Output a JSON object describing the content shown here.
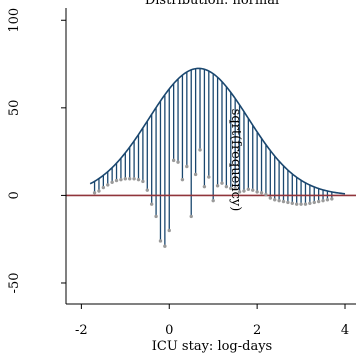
{
  "chart_data": {
    "type": "rootogram",
    "title": "Distribution: normal",
    "xlabel": "ICU stay: log-days",
    "ylabel": "sqrt(frequency)",
    "xlim": [
      -2.35,
      4.25
    ],
    "ylim": [
      -62,
      107
    ],
    "xticks": [
      "-2",
      "0",
      "2",
      "4"
    ],
    "xtick_values": [
      -2,
      0,
      2,
      4
    ],
    "yticks": [
      "-50",
      "0",
      "50",
      "100"
    ],
    "ytick_values": [
      -50,
      0,
      50,
      100
    ],
    "curve": {
      "mean": 0.67,
      "sd": 1.13,
      "peak": 72.5,
      "x_start": -1.8,
      "x_end": 4.0
    },
    "bars": {
      "x_start": -1.7,
      "step": 0.1,
      "residuals": [
        1.5,
        2.5,
        4.5,
        6.0,
        7.5,
        8.5,
        9.0,
        9.5,
        9.5,
        9.5,
        9.0,
        8.0,
        3.0,
        -5.0,
        -12.0,
        -26.0,
        -29.0,
        -20.0,
        20.0,
        19.0,
        9.0,
        16.5,
        -12.0,
        12.0,
        26.0,
        5.0,
        10.5,
        -3.0,
        5.5,
        7.0,
        5.0,
        4.0,
        4.0,
        2.0,
        2.5,
        3.5,
        3.0,
        2.0,
        1.5,
        0.5,
        -1.5,
        -2.5,
        -3.0,
        -3.5,
        -4.0,
        -4.5,
        -5.0,
        -5.0,
        -5.0,
        -4.5,
        -4.0,
        -3.5,
        -3.0,
        -2.5,
        -2.0
      ]
    },
    "colors": {
      "curve": "#1a476f",
      "bars": "#1a476f",
      "zero_line": "#90353b",
      "points": "#9a9a9a"
    },
    "grid": false,
    "legend": "none"
  }
}
